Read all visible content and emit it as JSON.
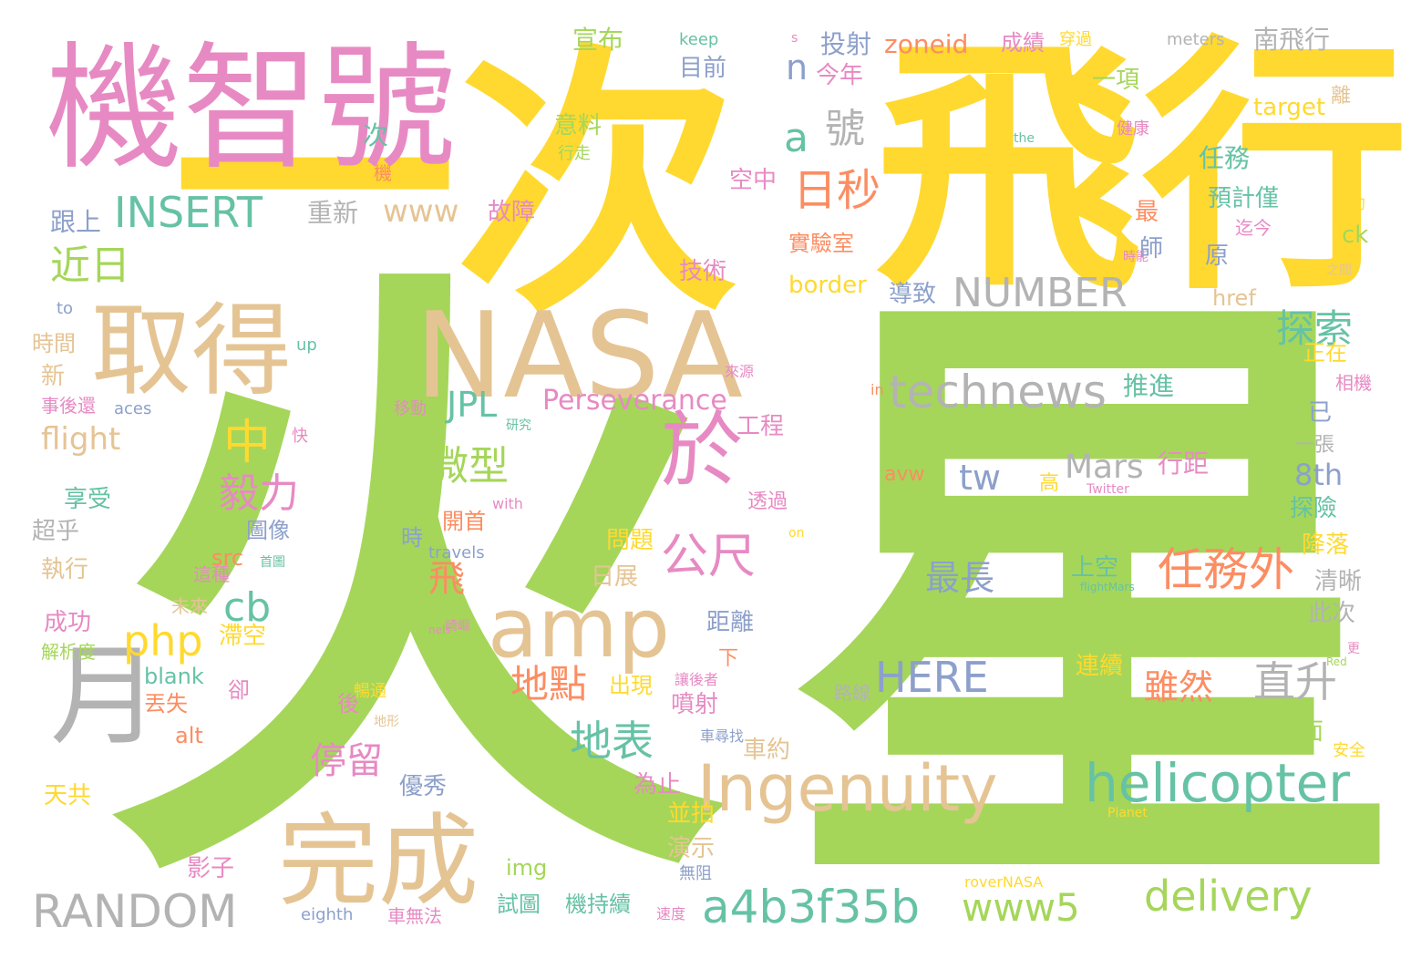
{
  "palette": {
    "green": "#a5d65a",
    "yellow": "#ffd92f",
    "pink": "#e78ac3",
    "tan": "#e5c494",
    "teal": "#66c2a5",
    "blue": "#8da0cb",
    "orange": "#fc8d62",
    "gray": "#b3b3b3"
  },
  "words": [
    {
      "text": "火",
      "color": "green"
    },
    {
      "text": "星",
      "color": "green"
    },
    {
      "text": "一次",
      "color": "yellow"
    },
    {
      "text": "飛行",
      "color": "yellow"
    },
    {
      "text": "機智號",
      "color": "pink"
    },
    {
      "text": "NASA",
      "color": "tan"
    },
    {
      "text": "取得",
      "color": "tan"
    },
    {
      "text": "月",
      "color": "gray"
    },
    {
      "text": "完成",
      "color": "tan"
    },
    {
      "text": "amp",
      "color": "tan"
    },
    {
      "text": "於",
      "color": "pink"
    },
    {
      "text": "Ingenuity",
      "color": "tan"
    },
    {
      "text": "helicopter",
      "color": "teal"
    },
    {
      "text": "technews",
      "color": "gray"
    },
    {
      "text": "a4b3f35b",
      "color": "teal"
    },
    {
      "text": "RANDOM",
      "color": "gray"
    },
    {
      "text": "NUMBER",
      "color": "gray"
    },
    {
      "text": "INSERT",
      "color": "teal"
    },
    {
      "text": "日秒",
      "color": "orange"
    },
    {
      "text": "公尺",
      "color": "pink"
    },
    {
      "text": "任務外",
      "color": "orange"
    },
    {
      "text": "delivery",
      "color": "green"
    },
    {
      "text": "www5",
      "color": "green"
    },
    {
      "text": "HERE",
      "color": "blue"
    },
    {
      "text": "Perseverance",
      "color": "pink"
    },
    {
      "text": "www",
      "color": "tan"
    },
    {
      "text": "近日",
      "color": "green"
    },
    {
      "text": "中",
      "color": "yellow"
    },
    {
      "text": "探索",
      "color": "teal"
    },
    {
      "text": "直升",
      "color": "gray"
    },
    {
      "text": "地表",
      "color": "teal"
    },
    {
      "text": "微型",
      "color": "green"
    },
    {
      "text": "毅力",
      "color": "pink"
    },
    {
      "text": "php",
      "color": "yellow"
    },
    {
      "text": "cb",
      "color": "teal"
    },
    {
      "text": "tw",
      "color": "blue"
    },
    {
      "text": "Mars",
      "color": "gray"
    },
    {
      "text": "地點",
      "color": "orange"
    },
    {
      "text": "停留",
      "color": "pink"
    },
    {
      "text": "最長",
      "color": "blue"
    },
    {
      "text": "雖然",
      "color": "orange"
    },
    {
      "text": "號",
      "color": "gray"
    },
    {
      "text": "a",
      "color": "teal"
    },
    {
      "text": "n",
      "color": "blue"
    },
    {
      "text": "JPL",
      "color": "teal"
    },
    {
      "text": "flight",
      "color": "tan"
    },
    {
      "text": "8th",
      "color": "blue"
    },
    {
      "text": "飛",
      "color": "orange"
    },
    {
      "text": "zoneid",
      "color": "orange"
    },
    {
      "text": "南飛行",
      "color": "gray"
    },
    {
      "text": "target",
      "color": "yellow"
    },
    {
      "text": "border",
      "color": "yellow"
    },
    {
      "text": "重新",
      "color": "gray"
    },
    {
      "text": "跟上",
      "color": "blue"
    },
    {
      "text": "故障",
      "color": "pink"
    },
    {
      "text": "宣布",
      "color": "green"
    },
    {
      "text": "目前",
      "color": "blue"
    },
    {
      "text": "投射",
      "color": "blue"
    },
    {
      "text": "今年",
      "color": "pink"
    },
    {
      "text": "成績",
      "color": "pink"
    },
    {
      "text": "一項",
      "color": "green"
    },
    {
      "text": "意料",
      "color": "green"
    },
    {
      "text": "任務",
      "color": "teal"
    },
    {
      "text": "預計僅",
      "color": "teal"
    },
    {
      "text": "空中",
      "color": "pink"
    },
    {
      "text": "實驗室",
      "color": "orange"
    },
    {
      "text": "技術",
      "color": "pink"
    },
    {
      "text": "導致",
      "color": "blue"
    },
    {
      "text": "推進",
      "color": "teal"
    },
    {
      "text": "行距",
      "color": "pink"
    },
    {
      "text": "工程",
      "color": "pink"
    },
    {
      "text": "開首",
      "color": "orange"
    },
    {
      "text": "問題",
      "color": "yellow"
    },
    {
      "text": "日展",
      "color": "tan"
    },
    {
      "text": "上空",
      "color": "teal"
    },
    {
      "text": "出現",
      "color": "yellow"
    },
    {
      "text": "噴射",
      "color": "pink"
    },
    {
      "text": "距離",
      "color": "blue"
    },
    {
      "text": "車約",
      "color": "tan"
    },
    {
      "text": "連續",
      "color": "yellow"
    },
    {
      "text": "表面",
      "color": "green"
    },
    {
      "text": "並拍",
      "color": "yellow"
    },
    {
      "text": "演示",
      "color": "tan"
    },
    {
      "text": "為止",
      "color": "pink"
    },
    {
      "text": "優秀",
      "color": "blue"
    },
    {
      "text": "機持續",
      "color": "teal"
    },
    {
      "text": "試圖",
      "color": "teal"
    },
    {
      "text": "影子",
      "color": "pink"
    },
    {
      "text": "天共",
      "color": "yellow"
    },
    {
      "text": "img",
      "color": "green"
    },
    {
      "text": "alt",
      "color": "orange"
    },
    {
      "text": "blank",
      "color": "teal"
    },
    {
      "text": "丟失",
      "color": "orange"
    },
    {
      "text": "卻",
      "color": "pink"
    },
    {
      "text": "後",
      "color": "pink"
    },
    {
      "text": "滯空",
      "color": "yellow"
    },
    {
      "text": "src",
      "color": "orange"
    },
    {
      "text": "圖像",
      "color": "blue"
    },
    {
      "text": "成功",
      "color": "pink"
    },
    {
      "text": "解析度",
      "color": "green"
    },
    {
      "text": "執行",
      "color": "tan"
    },
    {
      "text": "超乎",
      "color": "gray"
    },
    {
      "text": "享受",
      "color": "teal"
    },
    {
      "text": "新",
      "color": "tan"
    },
    {
      "text": "時間",
      "color": "tan"
    },
    {
      "text": "事後還",
      "color": "pink"
    },
    {
      "text": "aces",
      "color": "blue"
    },
    {
      "text": "to",
      "color": "blue"
    },
    {
      "text": "up",
      "color": "teal"
    },
    {
      "text": "keep",
      "color": "teal"
    },
    {
      "text": "s",
      "color": "pink"
    },
    {
      "text": "meters",
      "color": "gray"
    },
    {
      "text": "穿過",
      "color": "yellow"
    },
    {
      "text": "離",
      "color": "tan"
    },
    {
      "text": "健康",
      "color": "pink"
    },
    {
      "text": "the",
      "color": "teal"
    },
    {
      "text": "協助",
      "color": "yellow"
    },
    {
      "text": "時能",
      "color": "pink"
    },
    {
      "text": "之間",
      "color": "tan"
    },
    {
      "text": "ck",
      "color": "green"
    },
    {
      "text": "原",
      "color": "blue"
    },
    {
      "text": "師",
      "color": "blue"
    },
    {
      "text": "最",
      "color": "orange"
    },
    {
      "text": "迄今",
      "color": "pink"
    },
    {
      "text": "href",
      "color": "tan"
    },
    {
      "text": "正在",
      "color": "yellow"
    },
    {
      "text": "相機",
      "color": "pink"
    },
    {
      "text": "已",
      "color": "blue"
    },
    {
      "text": "一張",
      "color": "gray"
    },
    {
      "text": "探險",
      "color": "teal"
    },
    {
      "text": "降落",
      "color": "yellow"
    },
    {
      "text": "清晰",
      "color": "gray"
    },
    {
      "text": "此次",
      "color": "gray"
    },
    {
      "text": "更",
      "color": "pink"
    },
    {
      "text": "安全",
      "color": "yellow"
    },
    {
      "text": "Red",
      "color": "green"
    },
    {
      "text": "Twitter",
      "color": "pink"
    },
    {
      "text": "Planet",
      "color": "yellow"
    },
    {
      "text": "roverNASA",
      "color": "yellow"
    },
    {
      "text": "eighth",
      "color": "blue"
    },
    {
      "text": "車無法",
      "color": "pink"
    },
    {
      "text": "速度",
      "color": "pink"
    },
    {
      "text": "無阻",
      "color": "blue"
    },
    {
      "text": "車尋找",
      "color": "blue"
    },
    {
      "text": "讓後者",
      "color": "pink"
    },
    {
      "text": "暢通",
      "color": "yellow"
    },
    {
      "text": "地形",
      "color": "tan"
    },
    {
      "text": "崎嶇",
      "color": "pink"
    },
    {
      "text": "路線",
      "color": "gray"
    },
    {
      "text": "flightMars",
      "color": "teal"
    },
    {
      "text": "travels",
      "color": "blue"
    },
    {
      "text": "with",
      "color": "pink"
    },
    {
      "text": "透過",
      "color": "pink"
    },
    {
      "text": "on",
      "color": "yellow"
    },
    {
      "text": "首圖",
      "color": "teal"
    },
    {
      "text": "這種",
      "color": "pink"
    },
    {
      "text": "未來",
      "color": "tan"
    },
    {
      "text": "下",
      "color": "orange"
    },
    {
      "text": "時",
      "color": "blue"
    },
    {
      "text": "快",
      "color": "pink"
    },
    {
      "text": "研究",
      "color": "teal"
    },
    {
      "text": "移動",
      "color": "pink"
    },
    {
      "text": "來源",
      "color": "pink"
    },
    {
      "text": "in",
      "color": "orange"
    },
    {
      "text": "avw",
      "color": "orange"
    },
    {
      "text": "高",
      "color": "yellow"
    },
    {
      "text": "次",
      "color": "teal"
    },
    {
      "text": "機",
      "color": "orange"
    },
    {
      "text": "行走",
      "color": "green"
    },
    {
      "text": "nels",
      "color": "pink"
    }
  ]
}
